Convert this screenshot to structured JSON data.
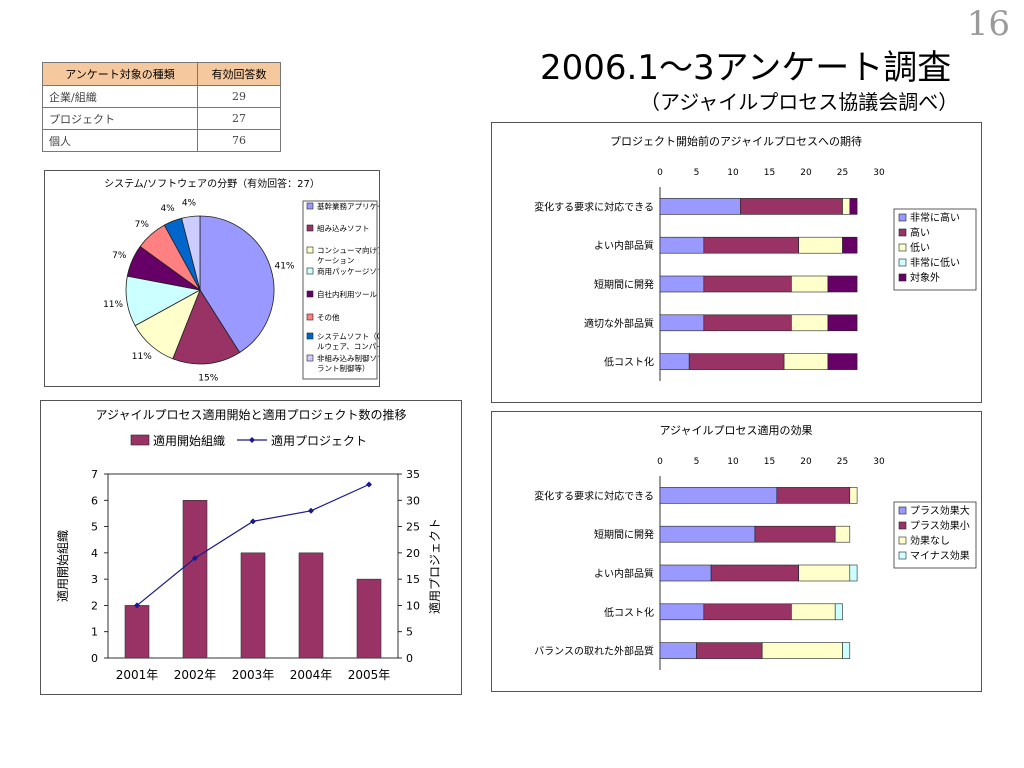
{
  "page_number": "16",
  "title": "2006.1～3アンケート調査",
  "subtitle": "（アジャイルプロセス協議会調べ）",
  "response_table": {
    "headers": [
      "アンケート対象の種類",
      "有効回答数"
    ],
    "rows": [
      {
        "label": "企業/組織",
        "count": "29"
      },
      {
        "label": "プロジェクト",
        "count": "27"
      },
      {
        "label": "個人",
        "count": "76"
      }
    ]
  },
  "colors": {
    "series1": "#9999ff",
    "series2": "#993366",
    "series3": "#ffffcc",
    "series4": "#ccffff",
    "series5": "#660066",
    "series6": "#ff8080",
    "series7": "#0066cc",
    "series8": "#ccccff",
    "table_header": "#f5c89e"
  },
  "chart_data": [
    {
      "id": "field_pie",
      "type": "pie",
      "title": "システム/ソフトウェアの分野（有効回答：27）",
      "slices": [
        {
          "name": "基幹業務アプリケーション",
          "value": 41,
          "label": "41%",
          "color": "#9999ff"
        },
        {
          "name": "組み込みソフト",
          "value": 15,
          "label": "15%",
          "color": "#993366"
        },
        {
          "name": "コンシューマ向けアプリケーション",
          "value": 11,
          "label": "11%",
          "color": "#ffffcc"
        },
        {
          "name": "商用パッケージソフト",
          "value": 11,
          "label": "11%",
          "color": "#ccffff"
        },
        {
          "name": "自社内利用ツール",
          "value": 7,
          "label": "7%",
          "color": "#660066"
        },
        {
          "name": "その他",
          "value": 7,
          "label": "7%",
          "color": "#ff8080"
        },
        {
          "name": "システムソフト（OS、ミドルウェア、コンパイラ等）",
          "value": 4,
          "label": "4%",
          "color": "#0066cc"
        },
        {
          "name": "非組み込み制御ソフト（プラント制御等）",
          "value": 4,
          "label": "4%",
          "color": "#ccccff"
        }
      ],
      "legend_lines": [
        [
          "基幹業務アプリケーション"
        ],
        [
          "組み込みソフト"
        ],
        [
          "コンシューマ向けアプリ",
          "ケーション"
        ],
        [
          "商用パッケージソフト"
        ],
        [
          "自社内利用ツール"
        ],
        [
          "その他"
        ],
        [
          "システムソフト（OS、ミド",
          "ルウェア、コンパイラ等）"
        ],
        [
          "非組み込み制御ソフト（プ",
          "ラント制御等）"
        ]
      ],
      "legend_position": "right"
    },
    {
      "id": "adoption_trend",
      "type": "bar+line",
      "title": "アジャイルプロセス適用開始と適用プロジェクト数の推移",
      "categories": [
        "2001年",
        "2002年",
        "2003年",
        "2004年",
        "2005年"
      ],
      "series": [
        {
          "name": "適用開始組織",
          "kind": "bar",
          "axis": "left",
          "values": [
            2,
            6,
            4,
            4,
            3
          ],
          "color": "#993366"
        },
        {
          "name": "適用プロジェクト",
          "kind": "line",
          "axis": "right",
          "values": [
            10,
            19,
            26,
            28,
            33
          ],
          "color": "#1a1a8c"
        }
      ],
      "ylabel": "適用開始組織",
      "y2label": "適用プロジェクト",
      "ylim": [
        0,
        7
      ],
      "yticks": [
        0,
        1,
        2,
        3,
        4,
        5,
        6,
        7
      ],
      "y2lim": [
        0,
        35
      ],
      "y2ticks": [
        0,
        5,
        10,
        15,
        20,
        25,
        30,
        35
      ],
      "legend_position": "top"
    },
    {
      "id": "expectation",
      "type": "stacked-bar-horizontal",
      "title": "プロジェクト開始前のアジャイルプロセスへの期待",
      "categories": [
        "変化する要求に対応できる",
        "よい内部品質",
        "短期間に開発",
        "適切な外部品質",
        "低コスト化"
      ],
      "series": [
        {
          "name": "非常に高い",
          "values": [
            11,
            6,
            6,
            6,
            4
          ],
          "color": "#9999ff"
        },
        {
          "name": "高い",
          "values": [
            14,
            13,
            12,
            12,
            13
          ],
          "color": "#993366"
        },
        {
          "name": "低い",
          "values": [
            1,
            6,
            5,
            5,
            6
          ],
          "color": "#ffffcc"
        },
        {
          "name": "非常に低い",
          "values": [
            0,
            0,
            0,
            0,
            0
          ],
          "color": "#ccffff"
        },
        {
          "name": "対象外",
          "values": [
            1,
            2,
            4,
            4,
            4
          ],
          "color": "#660066"
        }
      ],
      "xlim": [
        0,
        30
      ],
      "xticks": [
        0,
        5,
        10,
        15,
        20,
        25,
        30
      ],
      "legend_position": "right"
    },
    {
      "id": "effect",
      "type": "stacked-bar-horizontal",
      "title": "アジャイルプロセス適用の効果",
      "categories": [
        "変化する要求に対応できる",
        "短期間に開発",
        "よい内部品質",
        "低コスト化",
        "バランスの取れた外部品質"
      ],
      "series": [
        {
          "name": "プラス効果大",
          "values": [
            16,
            13,
            7,
            6,
            5
          ],
          "color": "#9999ff"
        },
        {
          "name": "プラス効果小",
          "values": [
            10,
            11,
            12,
            12,
            9
          ],
          "color": "#993366"
        },
        {
          "name": "効果なし",
          "values": [
            1,
            2,
            7,
            6,
            11
          ],
          "color": "#ffffcc"
        },
        {
          "name": "マイナス効果",
          "values": [
            0,
            0,
            1,
            1,
            1
          ],
          "color": "#ccffff"
        }
      ],
      "xlim": [
        0,
        30
      ],
      "xticks": [
        0,
        5,
        10,
        15,
        20,
        25,
        30
      ],
      "legend_position": "right"
    }
  ]
}
